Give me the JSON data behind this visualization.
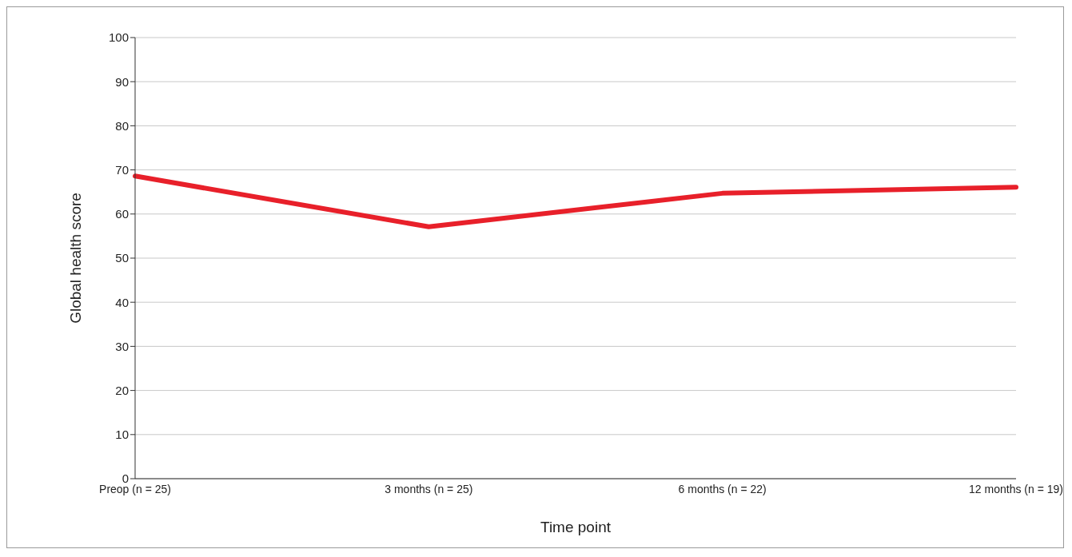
{
  "chart_data": {
    "type": "line",
    "xlabel": "Time point",
    "ylabel": "Global health score",
    "categories": [
      "Preop (n = 25)",
      "3 months (n = 25)",
      "6 months (n = 22)",
      "12 months (n = 19)"
    ],
    "series": [
      {
        "color": "#e8202a",
        "values": [
          68.6,
          57.1,
          64.7,
          66.1
        ]
      }
    ],
    "ylim": [
      0,
      100
    ],
    "yticks": [
      0,
      10,
      20,
      30,
      40,
      50,
      60,
      70,
      80,
      90,
      100
    ],
    "grid": "y",
    "legend": false,
    "marker": "none",
    "line_style": "solid"
  }
}
